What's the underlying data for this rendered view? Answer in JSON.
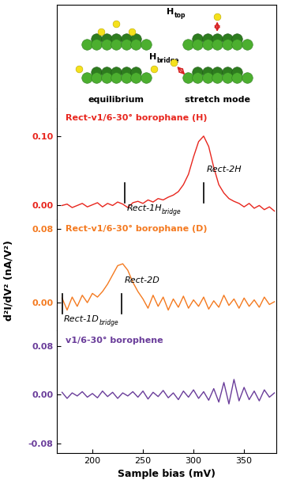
{
  "chart_data": {
    "type": "line",
    "x_label": "Sample bias (mV)",
    "y_label": "d²I/dV² (nA/V²)",
    "xlim": [
      165,
      382
    ],
    "xticks": [
      200,
      250,
      300,
      350
    ],
    "x": [
      170,
      175,
      180,
      185,
      190,
      195,
      200,
      205,
      210,
      215,
      220,
      225,
      230,
      235,
      240,
      245,
      250,
      255,
      260,
      265,
      270,
      275,
      280,
      285,
      290,
      295,
      300,
      305,
      310,
      315,
      320,
      325,
      330,
      335,
      340,
      345,
      350,
      355,
      360,
      365,
      370,
      375,
      380
    ],
    "series": [
      {
        "name": "Rect-v1/6-30° borophane (H)",
        "color": "#e8261e",
        "values": [
          0.0,
          0.002,
          -0.003,
          0.0,
          0.003,
          -0.002,
          0.001,
          0.004,
          -0.002,
          0.003,
          0.0,
          0.005,
          0.002,
          -0.003,
          0.004,
          0.006,
          0.003,
          0.008,
          0.005,
          0.01,
          0.008,
          0.012,
          0.015,
          0.02,
          0.03,
          0.045,
          0.07,
          0.092,
          0.1,
          0.085,
          0.055,
          0.03,
          0.018,
          0.01,
          0.006,
          0.003,
          -0.002,
          0.003,
          -0.004,
          0.0,
          -0.006,
          -0.002,
          -0.008
        ],
        "ylim": [
          -0.02,
          0.14
        ],
        "yticks": [
          {
            "value": 0.0,
            "label": "0.00"
          },
          {
            "value": 0.1,
            "label": "0.10"
          }
        ],
        "annotations": [
          {
            "x": 232,
            "text": "Rect-1H",
            "subscript": "bridge"
          },
          {
            "x": 310,
            "text": "Rect-2H",
            "subscript": ""
          }
        ]
      },
      {
        "name": "Rect-v1/6-30° borophane (D)",
        "color": "#f47a20",
        "values": [
          0.005,
          -0.008,
          0.006,
          -0.004,
          0.008,
          0.0,
          0.01,
          0.006,
          0.012,
          0.02,
          0.03,
          0.04,
          0.042,
          0.035,
          0.022,
          0.012,
          0.004,
          -0.006,
          0.008,
          -0.004,
          0.006,
          -0.008,
          0.004,
          -0.005,
          0.007,
          -0.006,
          0.003,
          -0.004,
          0.006,
          -0.007,
          0.002,
          -0.005,
          0.008,
          -0.003,
          0.004,
          -0.006,
          0.005,
          -0.004,
          0.003,
          -0.005,
          0.006,
          -0.002,
          0.001
        ],
        "ylim": [
          -0.03,
          0.09
        ],
        "yticks": [
          {
            "value": 0.0,
            "label": "0.00"
          },
          {
            "value": 0.08,
            "label": "0.08"
          }
        ],
        "annotations": [
          {
            "x": 170,
            "text": "Rect-1D",
            "subscript": "bridge"
          },
          {
            "x": 229,
            "text": "Rect-2D",
            "subscript": ""
          }
        ]
      },
      {
        "name": "v1/6-30° borophene",
        "color": "#6a3d9a",
        "values": [
          0.004,
          -0.006,
          0.003,
          -0.002,
          0.005,
          -0.004,
          0.002,
          -0.005,
          0.006,
          -0.003,
          0.004,
          -0.006,
          0.003,
          -0.002,
          0.005,
          -0.004,
          0.006,
          -0.007,
          0.004,
          -0.003,
          0.007,
          -0.005,
          0.003,
          -0.008,
          0.006,
          -0.004,
          0.008,
          -0.006,
          0.005,
          -0.009,
          0.01,
          -0.012,
          0.02,
          -0.015,
          0.025,
          -0.01,
          0.012,
          -0.008,
          0.006,
          -0.01,
          0.008,
          -0.004,
          0.003
        ],
        "ylim": [
          -0.095,
          0.105
        ],
        "yticks": [
          {
            "value": -0.08,
            "label": "-0.08"
          },
          {
            "value": 0.0,
            "label": "0.00"
          },
          {
            "value": 0.08,
            "label": "0.08"
          }
        ],
        "annotations": []
      }
    ],
    "inset": {
      "labels": [
        {
          "text": "H",
          "subscript": "top"
        },
        {
          "text": "H",
          "subscript": "bridge"
        }
      ],
      "captions": [
        "equilibrium",
        "stretch mode"
      ]
    }
  }
}
